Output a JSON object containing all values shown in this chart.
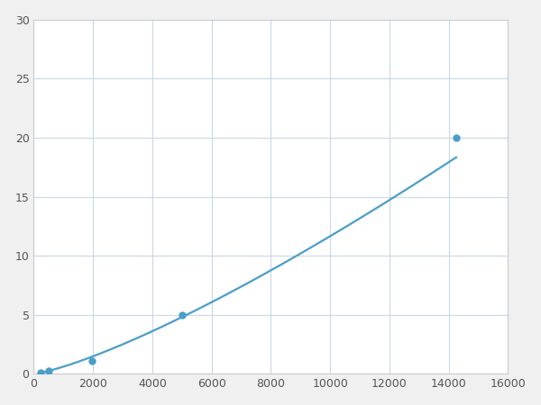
{
  "x": [
    246,
    493,
    1975,
    5000,
    14250
  ],
  "y": [
    0.1,
    0.3,
    1.1,
    5.0,
    20.0
  ],
  "line_color": "#4a9ec9",
  "marker_color": "#4a9ec9",
  "marker_size": 5,
  "line_width": 1.6,
  "xlim": [
    0,
    16000
  ],
  "ylim": [
    0,
    30
  ],
  "xticks": [
    0,
    2000,
    4000,
    6000,
    8000,
    10000,
    12000,
    14000,
    16000
  ],
  "yticks": [
    0,
    5,
    10,
    15,
    20,
    25,
    30
  ],
  "grid_color": "#c8d8e8",
  "background_color": "#ffffff",
  "figure_bg": "#f0f0f0"
}
